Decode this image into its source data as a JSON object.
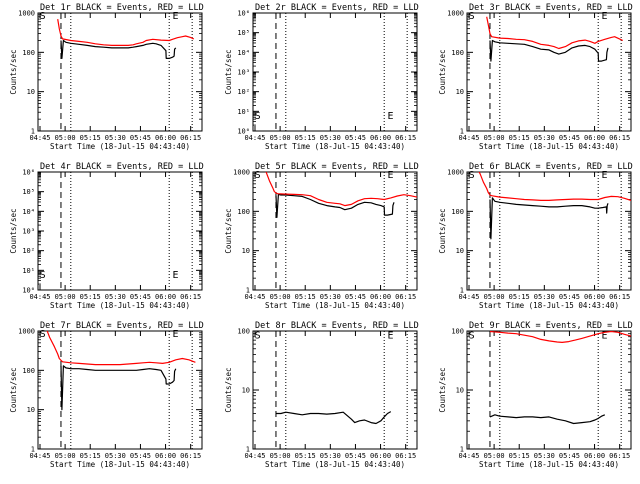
{
  "figure": {
    "colors": {
      "events": "#000000",
      "lld": "#ff0000",
      "axes": "#000000",
      "background": "#ffffff"
    }
  },
  "chart_data": [
    {
      "type": "line",
      "id": "det-1r",
      "title": "Det 1r BLACK = Events, RED = LLD",
      "xlabel": "Start Time (18-Jul-15 04:43:40)",
      "ylabel": "Counts/sec",
      "xlim": [
        0,
        100
      ],
      "ylim": [
        1,
        1000
      ],
      "yscale": "log",
      "xticks": [
        "04:45",
        "05:00",
        "05:15",
        "05:30",
        "05:45",
        "06:00",
        "06:15"
      ],
      "yticks": [
        "1",
        "10",
        "100",
        "1000"
      ],
      "dashed_line_x": 14,
      "dotted_lines_x": [
        20,
        80,
        94
      ],
      "markers": [
        {
          "text": "S",
          "x": 1,
          "y": 700
        },
        {
          "text": "E",
          "x": 82,
          "y": 700
        }
      ],
      "series": [
        {
          "role": "events",
          "x": [
            14,
            14.6,
            15.5,
            17,
            20,
            25,
            30,
            35,
            40,
            45,
            50,
            55,
            58,
            60,
            64,
            66,
            70,
            72,
            75,
            78,
            78.2,
            80,
            82,
            83,
            83.3,
            84
          ],
          "y": [
            200,
            70,
            200,
            180,
            170,
            160,
            150,
            140,
            135,
            130,
            130,
            130,
            135,
            140,
            150,
            160,
            170,
            165,
            150,
            110,
            70,
            70,
            75,
            80,
            120,
            130
          ]
        },
        {
          "role": "lld",
          "x": [
            12,
            13,
            14,
            15,
            20,
            25,
            30,
            35,
            40,
            45,
            50,
            55,
            58,
            60,
            64,
            66,
            70,
            75,
            80,
            82,
            85,
            88,
            90,
            93,
            95
          ],
          "y": [
            700,
            400,
            260,
            220,
            200,
            190,
            180,
            165,
            155,
            150,
            150,
            150,
            155,
            165,
            180,
            200,
            215,
            205,
            200,
            215,
            235,
            250,
            260,
            240,
            220
          ]
        }
      ]
    },
    {
      "type": "line",
      "id": "det-2r",
      "title": "Det 2r BLACK = Events, RED = LLD",
      "xlabel": "Start Time (18-Jul-15 04:43:40)",
      "ylabel": "Counts/sec",
      "xlim": [
        0,
        100
      ],
      "ylim": [
        1,
        1000000
      ],
      "yscale": "log",
      "xticks": [
        "04:45",
        "05:00",
        "05:15",
        "05:30",
        "05:45",
        "06:00",
        "06:15"
      ],
      "yticks": [
        "10⁰",
        "10¹",
        "10²",
        "10³",
        "10⁴",
        "10⁵",
        "10⁶"
      ],
      "dashed_line_x": 14,
      "dotted_lines_x": [
        20,
        80,
        94
      ],
      "markers": [
        {
          "text": "S",
          "x": 1,
          "y": 4
        },
        {
          "text": "E",
          "x": 82,
          "y": 4
        }
      ],
      "series": []
    },
    {
      "type": "line",
      "id": "det-3r",
      "title": "Det 3r BLACK = Events, RED = LLD",
      "xlabel": "Start Time (18-Jul-15 04:43:40)",
      "ylabel": "Counts/sec",
      "xlim": [
        0,
        100
      ],
      "ylim": [
        1,
        1000
      ],
      "yscale": "log",
      "xticks": [
        "04:45",
        "05:00",
        "05:15",
        "05:30",
        "05:45",
        "06:00",
        "06:15"
      ],
      "yticks": [
        "1",
        "10",
        "100",
        "1000"
      ],
      "dashed_line_x": 14,
      "dotted_lines_x": [
        20,
        80,
        94
      ],
      "markers": [
        {
          "text": "S",
          "x": 1,
          "y": 700
        },
        {
          "text": "E",
          "x": 82,
          "y": 700
        }
      ],
      "series": [
        {
          "role": "events",
          "x": [
            14,
            14.6,
            15.5,
            17,
            20,
            25,
            30,
            35,
            40,
            45,
            50,
            53,
            56,
            60,
            64,
            68,
            72,
            75,
            78,
            80,
            80.2,
            82,
            85,
            85.3,
            86
          ],
          "y": [
            200,
            60,
            200,
            185,
            175,
            170,
            165,
            160,
            140,
            120,
            115,
            100,
            90,
            100,
            130,
            145,
            150,
            140,
            120,
            95,
            60,
            60,
            65,
            100,
            130
          ]
        },
        {
          "role": "lld",
          "x": [
            12,
            13,
            14,
            15,
            20,
            25,
            30,
            35,
            40,
            45,
            50,
            53,
            56,
            60,
            64,
            68,
            72,
            75,
            78,
            80,
            84,
            88,
            90,
            93,
            95
          ],
          "y": [
            800,
            500,
            300,
            250,
            230,
            225,
            215,
            210,
            190,
            160,
            150,
            140,
            125,
            140,
            175,
            195,
            205,
            190,
            170,
            190,
            215,
            240,
            250,
            220,
            200
          ]
        }
      ]
    },
    {
      "type": "line",
      "id": "det-4r",
      "title": "Det 4r BLACK = Events, RED = LLD",
      "xlabel": "Start Time (18-Jul-15 04:43:40)",
      "ylabel": "Counts/sec",
      "xlim": [
        0,
        100
      ],
      "ylim": [
        1,
        1000000
      ],
      "yscale": "log",
      "xticks": [
        "04:45",
        "05:00",
        "05:15",
        "05:30",
        "05:45",
        "06:00",
        "06:15"
      ],
      "yticks": [
        "10⁰",
        "10¹",
        "10²",
        "10³",
        "10⁴",
        "10⁵",
        "10⁶"
      ],
      "dashed_line_x": 14,
      "dotted_lines_x": [
        20,
        80,
        94
      ],
      "markers": [
        {
          "text": "S",
          "x": 1,
          "y": 4
        },
        {
          "text": "E",
          "x": 82,
          "y": 4
        }
      ],
      "series": []
    },
    {
      "type": "line",
      "id": "det-5r",
      "title": "Det 5r BLACK = Events, RED = LLD",
      "xlabel": "Start Time (18-Jul-15 04:43:40)",
      "ylabel": "Counts/sec",
      "xlim": [
        0,
        100
      ],
      "ylim": [
        1,
        1000
      ],
      "yscale": "log",
      "xticks": [
        "04:45",
        "05:00",
        "05:15",
        "05:30",
        "05:45",
        "06:00",
        "06:15"
      ],
      "yticks": [
        "1",
        "10",
        "100",
        "1000"
      ],
      "dashed_line_x": 14,
      "dotted_lines_x": [
        20,
        80,
        94
      ],
      "markers": [
        {
          "text": "S",
          "x": 1,
          "y": 700
        },
        {
          "text": "E",
          "x": 82,
          "y": 700
        }
      ],
      "series": [
        {
          "role": "events",
          "x": [
            14,
            14.6,
            15.5,
            17,
            20,
            25,
            30,
            35,
            40,
            45,
            50,
            53,
            56,
            60,
            64,
            68,
            72,
            75,
            78,
            80,
            80.2,
            82,
            85,
            85.3,
            86
          ],
          "y": [
            250,
            70,
            270,
            260,
            260,
            250,
            240,
            200,
            160,
            140,
            130,
            125,
            110,
            120,
            150,
            170,
            165,
            150,
            140,
            130,
            80,
            80,
            85,
            140,
            170
          ]
        },
        {
          "role": "lld",
          "x": [
            5,
            8,
            10,
            12,
            13,
            14,
            15,
            20,
            25,
            30,
            35,
            40,
            45,
            50,
            53,
            56,
            60,
            64,
            68,
            72,
            76,
            80,
            84,
            88,
            92,
            96,
            100
          ],
          "y": [
            1500,
            1000,
            600,
            400,
            320,
            290,
            280,
            275,
            270,
            265,
            250,
            200,
            170,
            160,
            155,
            140,
            150,
            185,
            210,
            215,
            210,
            200,
            220,
            245,
            265,
            250,
            230
          ]
        }
      ]
    },
    {
      "type": "line",
      "id": "det-6r",
      "title": "Det 6r BLACK = Events, RED = LLD",
      "xlabel": "Start Time (18-Jul-15 04:43:40)",
      "ylabel": "Counts/sec",
      "xlim": [
        0,
        100
      ],
      "ylim": [
        1,
        1000
      ],
      "yscale": "log",
      "xticks": [
        "04:45",
        "05:00",
        "05:15",
        "05:30",
        "05:45",
        "06:00",
        "06:15"
      ],
      "yticks": [
        "1",
        "10",
        "100",
        "1000"
      ],
      "dashed_line_x": 14,
      "dotted_lines_x": [
        20,
        80,
        94
      ],
      "markers": [
        {
          "text": "S",
          "x": 1,
          "y": 700
        },
        {
          "text": "E",
          "x": 82,
          "y": 700
        }
      ],
      "series": [
        {
          "role": "events",
          "x": [
            14,
            14.6,
            15.5,
            17,
            20,
            25,
            30,
            35,
            40,
            45,
            50,
            55,
            60,
            65,
            70,
            75,
            78,
            80,
            83,
            85,
            85.2,
            85.5,
            86
          ],
          "y": [
            200,
            20,
            220,
            180,
            170,
            160,
            150,
            145,
            140,
            135,
            130,
            130,
            135,
            140,
            140,
            130,
            120,
            120,
            125,
            130,
            90,
            140,
            160
          ]
        },
        {
          "role": "lld",
          "x": [
            5,
            8,
            10,
            12,
            13,
            14,
            15,
            20,
            25,
            30,
            35,
            40,
            45,
            50,
            55,
            60,
            65,
            70,
            75,
            80,
            84,
            88,
            92,
            96,
            100
          ],
          "y": [
            1500,
            900,
            550,
            380,
            300,
            260,
            250,
            230,
            220,
            210,
            200,
            195,
            190,
            190,
            195,
            200,
            205,
            205,
            200,
            200,
            225,
            240,
            235,
            215,
            190
          ]
        }
      ]
    },
    {
      "type": "line",
      "id": "det-7r",
      "title": "Det 7r BLACK = Events, RED = LLD",
      "xlabel": "Start Time (18-Jul-15 04:43:40)",
      "ylabel": "Counts/sec",
      "xlim": [
        0,
        100
      ],
      "ylim": [
        1,
        1000
      ],
      "yscale": "log",
      "xticks": [
        "04:45",
        "05:00",
        "05:15",
        "05:30",
        "05:45",
        "06:00",
        "06:15"
      ],
      "yticks": [
        "1",
        "10",
        "100",
        "1000"
      ],
      "dashed_line_x": 14,
      "dotted_lines_x": [
        20,
        80,
        94
      ],
      "markers": [
        {
          "text": "S",
          "x": 1,
          "y": 700
        },
        {
          "text": "E",
          "x": 82,
          "y": 700
        }
      ],
      "series": [
        {
          "role": "events",
          "x": [
            14,
            14.6,
            15.5,
            17,
            20,
            25,
            30,
            35,
            40,
            45,
            50,
            55,
            60,
            64,
            68,
            72,
            75,
            78,
            78.2,
            80,
            82,
            83,
            83.3,
            84
          ],
          "y": [
            130,
            10,
            130,
            115,
            110,
            110,
            105,
            100,
            100,
            100,
            100,
            100,
            100,
            105,
            110,
            105,
            100,
            60,
            45,
            45,
            50,
            55,
            95,
            110
          ]
        },
        {
          "role": "lld",
          "x": [
            4,
            7,
            10,
            12,
            13,
            14,
            15,
            20,
            25,
            30,
            35,
            40,
            45,
            50,
            55,
            60,
            64,
            68,
            72,
            76,
            80,
            84,
            88,
            92,
            96
          ],
          "y": [
            1500,
            700,
            400,
            260,
            200,
            180,
            165,
            155,
            150,
            145,
            140,
            140,
            140,
            140,
            145,
            150,
            155,
            160,
            155,
            150,
            160,
            185,
            200,
            185,
            160
          ]
        }
      ]
    },
    {
      "type": "line",
      "id": "det-8r",
      "title": "Det 8r BLACK = Events, RED = LLD",
      "xlabel": "Start Time (18-Jul-15 04:43:40)",
      "ylabel": "Counts/sec",
      "xlim": [
        0,
        100
      ],
      "ylim": [
        1,
        100
      ],
      "yscale": "log",
      "xticks": [
        "04:45",
        "05:00",
        "05:15",
        "05:30",
        "05:45",
        "06:00",
        "06:15"
      ],
      "yticks": [
        "1",
        "10",
        "100"
      ],
      "dashed_line_x": 14,
      "dotted_lines_x": [
        20,
        80,
        94
      ],
      "markers": [
        {
          "text": "S",
          "x": 1,
          "y": 75
        },
        {
          "text": "E",
          "x": 82,
          "y": 75
        }
      ],
      "series": [
        {
          "role": "events",
          "x": [
            14,
            17,
            20,
            25,
            30,
            35,
            40,
            45,
            50,
            55,
            60,
            62,
            65,
            68,
            72,
            75,
            78,
            80,
            82,
            84
          ],
          "y": [
            4,
            4,
            4.2,
            4,
            3.8,
            4,
            4,
            3.9,
            4,
            4.2,
            3.2,
            2.8,
            3,
            3.1,
            2.8,
            2.7,
            3,
            3.5,
            4,
            4.3
          ]
        }
      ]
    },
    {
      "type": "line",
      "id": "det-9r",
      "title": "Det 9r BLACK = Events, RED = LLD",
      "xlabel": "Start Time (18-Jul-15 04:43:40)",
      "ylabel": "Counts/sec",
      "xlim": [
        0,
        100
      ],
      "ylim": [
        1,
        100
      ],
      "yscale": "log",
      "xticks": [
        "04:45",
        "05:00",
        "05:15",
        "05:30",
        "05:45",
        "06:00",
        "06:15"
      ],
      "yticks": [
        "1",
        "10",
        "100"
      ],
      "dashed_line_x": 14,
      "dotted_lines_x": [
        20,
        80,
        94
      ],
      "markers": [
        {
          "text": "S",
          "x": 1,
          "y": 75
        },
        {
          "text": "E",
          "x": 82,
          "y": 75
        }
      ],
      "series": [
        {
          "role": "events",
          "x": [
            14,
            17,
            20,
            25,
            30,
            35,
            40,
            45,
            50,
            55,
            60,
            65,
            70,
            75,
            78,
            80,
            82,
            84
          ],
          "y": [
            3.5,
            3.8,
            3.6,
            3.5,
            3.4,
            3.5,
            3.5,
            3.4,
            3.5,
            3.2,
            3,
            2.7,
            2.8,
            2.9,
            3.1,
            3.3,
            3.6,
            3.8
          ]
        },
        {
          "role": "lld",
          "x": [
            14,
            20,
            25,
            30,
            35,
            40,
            45,
            50,
            55,
            58,
            62,
            66,
            70,
            75,
            80,
            84,
            88,
            92,
            96,
            100
          ],
          "y": [
            98,
            95,
            92,
            90,
            85,
            80,
            72,
            68,
            65,
            64,
            66,
            70,
            75,
            82,
            90,
            95,
            98,
            95,
            88,
            82
          ]
        }
      ]
    }
  ]
}
